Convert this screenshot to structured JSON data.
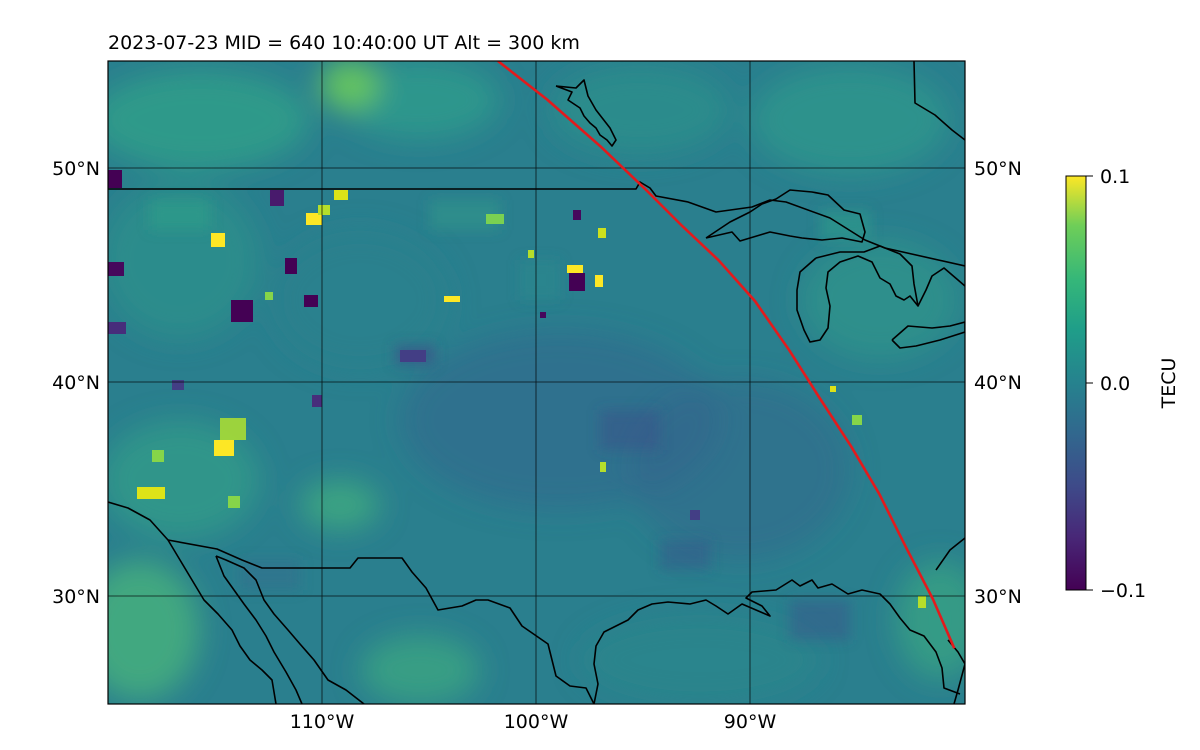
{
  "title": "2023-07-23  MID = 640    10:40:00  UT  Alt = 300 km",
  "map": {
    "lon_range": [
      -120,
      -80
    ],
    "lat_range": [
      25,
      55
    ],
    "projection": "plate carree",
    "gridlines": true,
    "lon_ticks": [
      "110°W",
      "100°W",
      "90°W"
    ],
    "lon_tick_values": [
      -110,
      -100,
      -90
    ],
    "lat_ticks_left": [
      "50°N",
      "40°N",
      "30°N"
    ],
    "lat_ticks_right": [
      "50°N",
      "40°N",
      "30°N"
    ],
    "lat_tick_values": [
      50,
      40,
      30
    ],
    "overlays": [
      "coastlines",
      "country-borders",
      "great-lakes"
    ],
    "track_color": "#e31a1c"
  },
  "colorbar": {
    "label": "TECU",
    "ticks": [
      "0.1",
      "0.0",
      "−0.1"
    ],
    "tick_values": [
      0.1,
      0.0,
      -0.1
    ],
    "range": [
      -0.1,
      0.1
    ],
    "colormap": "viridis"
  },
  "chart_data": {
    "type": "heatmap",
    "title": "2023-07-23  MID = 640    10:40:00  UT  Alt = 300 km",
    "xlabel": "",
    "ylabel": "",
    "x_range_deg": [
      -120,
      -80
    ],
    "y_range_deg": [
      25,
      55
    ],
    "value_label": "TECU",
    "vmin": -0.1,
    "vmax": 0.1,
    "track": {
      "color": "#e31a1c",
      "points_lonlat": [
        [
          -101.8,
          55.0
        ],
        [
          -99.5,
          53.2
        ],
        [
          -97.0,
          51.0
        ],
        [
          -95.0,
          49.1
        ],
        [
          -93.2,
          47.3
        ],
        [
          -91.5,
          45.7
        ],
        [
          -89.8,
          43.8
        ],
        [
          -88.2,
          41.5
        ],
        [
          -86.8,
          39.3
        ],
        [
          -85.3,
          37.0
        ],
        [
          -84.0,
          34.8
        ],
        [
          -82.7,
          32.2
        ],
        [
          -81.5,
          29.9
        ],
        [
          -80.5,
          27.6
        ]
      ]
    },
    "bright_patches_lonlat": [
      [
        -113.0,
        47.5
      ],
      [
        -114.0,
        48.5
      ],
      [
        -115.5,
        46.5
      ],
      [
        -112.0,
        48.5
      ],
      [
        -114.2,
        37.0
      ],
      [
        -118.4,
        35.0
      ],
      [
        -106.8,
        44.0
      ],
      [
        -97.9,
        45.5
      ],
      [
        -97.2,
        46.8
      ],
      [
        -98.9,
        47.5
      ],
      [
        -103.0,
        39.2
      ],
      [
        -89.1,
        40.0
      ],
      [
        -85.5,
        38.0
      ],
      [
        -83.0,
        29.3
      ],
      [
        -96.2,
        36.2
      ]
    ],
    "dark_patches_lonlat": [
      [
        -114.1,
        43.7
      ],
      [
        -110.5,
        44.0
      ],
      [
        -98.0,
        44.9
      ],
      [
        -118.8,
        49.3
      ],
      [
        -113.8,
        48.7
      ],
      [
        -111.3,
        45.5
      ],
      [
        -118.8,
        45.5
      ],
      [
        -118.8,
        42.5
      ],
      [
        -99.7,
        43.2
      ],
      [
        -110.7,
        39.2
      ],
      [
        -105.8,
        41.3
      ],
      [
        -107.8,
        38.6
      ]
    ]
  }
}
